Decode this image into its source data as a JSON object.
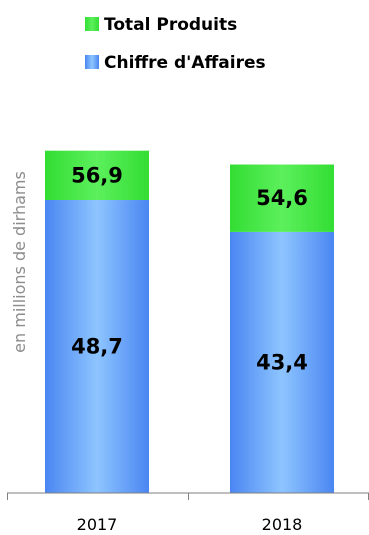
{
  "chart_data": {
    "type": "bar",
    "stacked": true,
    "categories": [
      "2017",
      "2018"
    ],
    "series": [
      {
        "name": "Chiffre d'Affaires",
        "values": [
          48.7,
          43.4
        ],
        "labels": [
          "48,7",
          "43,4"
        ],
        "color": "#4d8ef5",
        "color_light": "#8ec5ff"
      },
      {
        "name": "Total Produits",
        "values": [
          8.2,
          11.2
        ],
        "labels": [
          "56,9",
          "54,6"
        ],
        "color": "#33dd33",
        "color_light": "#44ee44"
      }
    ],
    "totals": [
      56.9,
      54.6
    ],
    "ylabel": "en millions de dirhams",
    "legend": [
      {
        "label": "Total Produits",
        "color": "#33dd33"
      },
      {
        "label": "Chiffre d'Affaires",
        "color": "#4d8ef5"
      }
    ],
    "legend_position": "top",
    "ylim": [
      0,
      62
    ],
    "grid": false
  }
}
